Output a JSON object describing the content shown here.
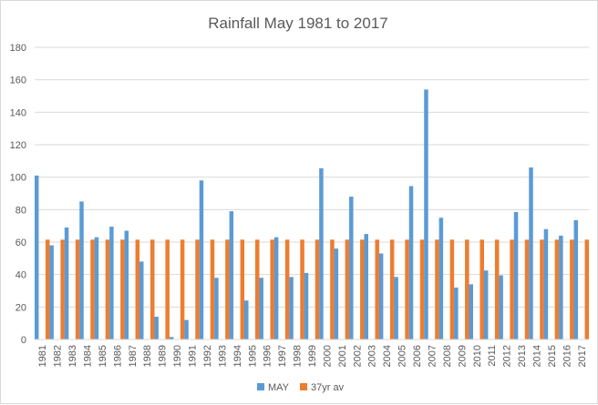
{
  "chart_data": {
    "type": "bar",
    "title": "Rainfall May 1981 to 2017",
    "xlabel": "",
    "ylabel": "",
    "ylim": [
      0,
      180
    ],
    "yticks": [
      0,
      20,
      40,
      60,
      80,
      100,
      120,
      140,
      160,
      180
    ],
    "grid": "horizontal",
    "legend_position": "bottom",
    "categories": [
      "1981",
      "1982",
      "1983",
      "1984",
      "1985",
      "1986",
      "1987",
      "1988",
      "1989",
      "1990",
      "1991",
      "1992",
      "1993",
      "1994",
      "1995",
      "1996",
      "1997",
      "1998",
      "1999",
      "2000",
      "2001",
      "2002",
      "2003",
      "2004",
      "2005",
      "2006",
      "2007",
      "2008",
      "2009",
      "2010",
      "2011",
      "2012",
      "2013",
      "2014",
      "2015",
      "2016",
      "2017"
    ],
    "series": [
      {
        "name": "MAY",
        "color": "#5b9bd5",
        "values": [
          101,
          58,
          69,
          85,
          63,
          69.5,
          67,
          48,
          14,
          1.5,
          12,
          98,
          38,
          79,
          24,
          38,
          63,
          38.5,
          41,
          105.5,
          56,
          88,
          65,
          53,
          38.5,
          94.5,
          154,
          75,
          32,
          34,
          42.5,
          39.5,
          78.5,
          106,
          68,
          64,
          73.5
        ]
      },
      {
        "name": "37yr av",
        "color": "#ed7d31",
        "values": [
          61.5,
          61.5,
          61.5,
          61.5,
          61.5,
          61.5,
          61.5,
          61.5,
          61.5,
          61.5,
          61.5,
          61.5,
          61.5,
          61.5,
          61.5,
          61.5,
          61.5,
          61.5,
          61.5,
          61.5,
          61.5,
          61.5,
          61.5,
          61.5,
          61.5,
          61.5,
          61.5,
          61.5,
          61.5,
          61.5,
          61.5,
          61.5,
          61.5,
          61.5,
          61.5,
          61.5,
          61.5
        ]
      }
    ]
  }
}
